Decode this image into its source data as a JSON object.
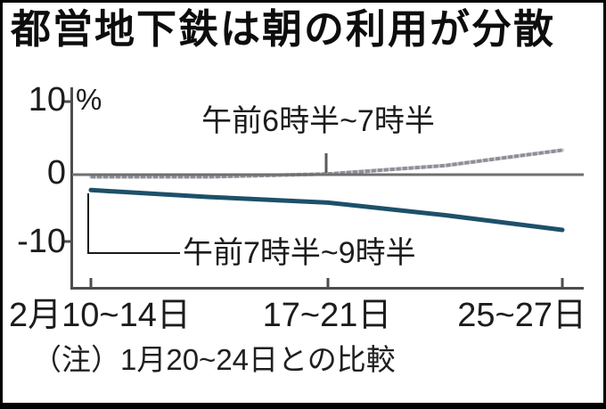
{
  "title": "都営地下鉄は朝の利用が分散",
  "note": "（注）1月20~24日との比較",
  "chart_data": {
    "type": "line",
    "title": "都営地下鉄は朝の利用が分散",
    "unit_label": "%",
    "categories": [
      "2月10~14日",
      "17~21日",
      "25~27日"
    ],
    "x_axis_prefix_note": "2月",
    "y_axis": {
      "ticks": [
        {
          "value": 10,
          "label": "10"
        },
        {
          "value": 0,
          "label": "0"
        },
        {
          "value": -10,
          "label": "-10"
        }
      ],
      "range_shown": [
        -16,
        12.5
      ]
    },
    "grid": "zero-baseline-only",
    "legend_position": "inline-labels-on-plot",
    "series": [
      {
        "name": "午前6時半~7時半",
        "color": "#8e8e96",
        "style": "hatched-gray",
        "points": [
          {
            "x": 0,
            "y": -0.3
          },
          {
            "x": 0.5,
            "y": -0.3
          },
          {
            "x": 1,
            "y": 0.1
          },
          {
            "x": 1.5,
            "y": 1.3
          },
          {
            "x": 2,
            "y": 3.5
          }
        ]
      },
      {
        "name": "午前7時半~9時半",
        "color": "#1d5069",
        "style": "solid-teal",
        "points": [
          {
            "x": 0,
            "y": -2.2
          },
          {
            "x": 0.5,
            "y": -3.2
          },
          {
            "x": 1,
            "y": -4.0
          },
          {
            "x": 1.5,
            "y": -5.8
          },
          {
            "x": 2,
            "y": -7.9
          }
        ]
      }
    ],
    "annotation_note": "（注）1月20~24日との比較"
  }
}
